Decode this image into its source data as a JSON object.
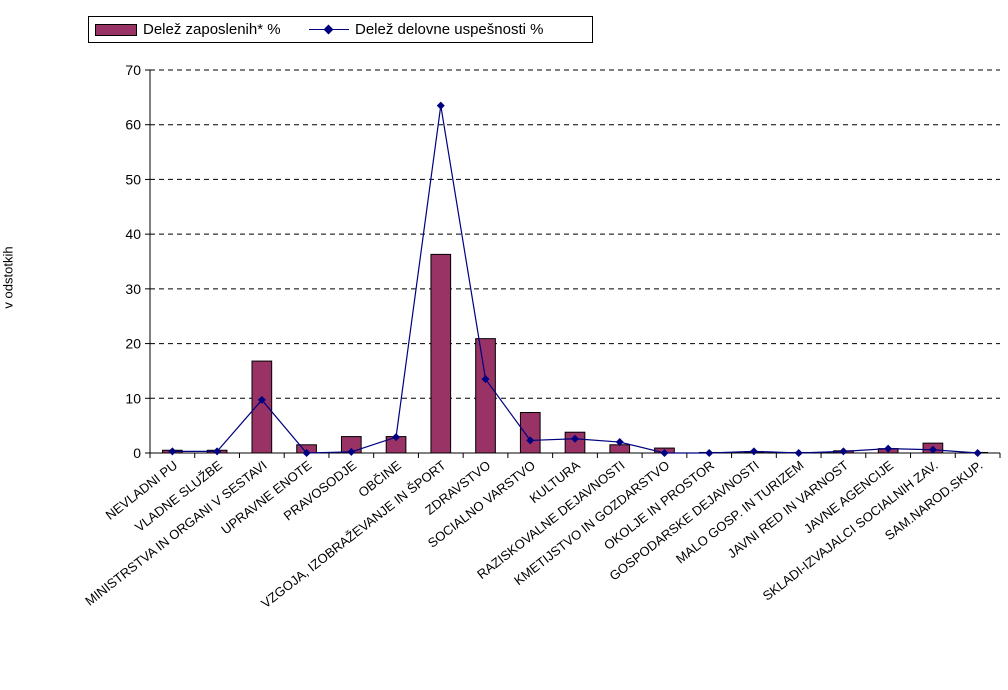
{
  "chart_data": {
    "type": "bar",
    "ylabel": "v odstotkih",
    "xlabel": "",
    "ylim": [
      0,
      70
    ],
    "yticks": [
      0,
      10,
      20,
      30,
      40,
      50,
      60,
      70
    ],
    "grid": "horizontal dashed",
    "legend_position": "top-left",
    "categories": [
      "NEVLADNI PU",
      "VLADNE SLUŽBE",
      "MINISTRSTVA IN ORGANI V SESTAVI",
      "UPRAVNE ENOTE",
      "PRAVOSODJE",
      "OBČINE",
      "VZGOJA, IZOBRAŽEVANJE IN ŠPORT",
      "ZDRAVSTVO",
      "SOCIALNO VARSTVO",
      "KULTURA",
      "RAZISKOVALNE DEJAVNOSTI",
      "KMETIJSTVO IN GOZDARSTVO",
      "OKOLJE IN PROSTOR",
      "GOSPODARSKE DEJAVNOSTI",
      "MALO GOSP. IN TURIZEM",
      "JAVNI RED IN VARNOST",
      "JAVNE AGENCIJE",
      "SKLADI-IZVAJALCI SOCIALNIH ZAV.",
      "SAM.NAROD.SKUP."
    ],
    "series": [
      {
        "name": "Delež zaposlenih* %",
        "kind": "bar",
        "color": "#993366",
        "values": [
          0.5,
          0.5,
          16.8,
          1.5,
          3.0,
          3.0,
          36.3,
          20.9,
          7.4,
          3.8,
          1.5,
          0.9,
          0.1,
          0.2,
          0.1,
          0.4,
          0.8,
          1.8,
          0.1
        ]
      },
      {
        "name": "Delež delovne uspešnosti %",
        "kind": "line",
        "color": "#000080",
        "values": [
          0.3,
          0.3,
          9.7,
          0.0,
          0.2,
          2.9,
          63.5,
          13.5,
          2.3,
          2.6,
          2.0,
          0.0,
          0.0,
          0.3,
          0.0,
          0.3,
          0.8,
          0.6,
          0.0
        ]
      }
    ]
  }
}
